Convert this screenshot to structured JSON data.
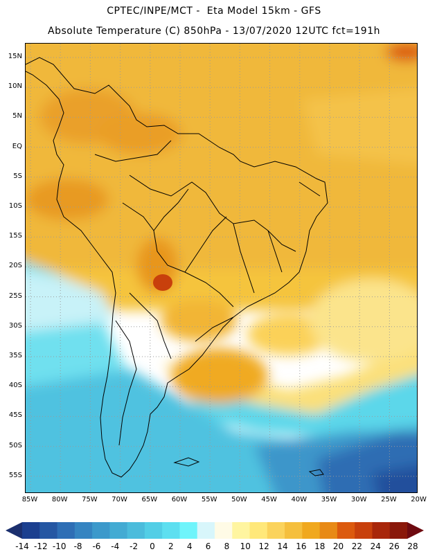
{
  "header": {
    "line1": "CPTEC/INPE/MCT -  Eta Model 15km - GFS",
    "line2": "Absolute Temperature (C) 850hPa - 13/07/2020 12UTC fct=191h"
  },
  "map": {
    "lat_labels": [
      "15N",
      "10N",
      "5N",
      "EQ",
      "5S",
      "10S",
      "15S",
      "20S",
      "25S",
      "30S",
      "35S",
      "40S",
      "45S",
      "50S",
      "55S"
    ],
    "lon_labels": [
      "85W",
      "80W",
      "75W",
      "70W",
      "65W",
      "60W",
      "55W",
      "50W",
      "45W",
      "40W",
      "35W",
      "30W",
      "25W",
      "20W"
    ],
    "grid": "dotted",
    "colors": {
      "coast": "#000000",
      "grid_line": "#9a9a9a"
    }
  },
  "colorbar": {
    "labels": [
      "-14",
      "-12",
      "-10",
      "-8",
      "-6",
      "-4",
      "-2",
      "0",
      "2",
      "4",
      "6",
      "8",
      "10",
      "12",
      "14",
      "16",
      "18",
      "20",
      "22",
      "24",
      "26",
      "28"
    ],
    "colors": [
      "#1b3f8f",
      "#2557a3",
      "#2e6eb5",
      "#3584c1",
      "#3c99cb",
      "#43abd3",
      "#4bbcdc",
      "#52cee6",
      "#5ddff0",
      "#6ff4fb",
      "#d8f6fb",
      "#fffbe6",
      "#fff5a0",
      "#ffe87a",
      "#fbd35c",
      "#f5bf3d",
      "#f0a81e",
      "#e88a16",
      "#dc5a0e",
      "#c8400c",
      "#a8260a",
      "#8a180a"
    ],
    "arrow_left": "#1b2f6e",
    "arrow_right": "#6e0a10"
  }
}
